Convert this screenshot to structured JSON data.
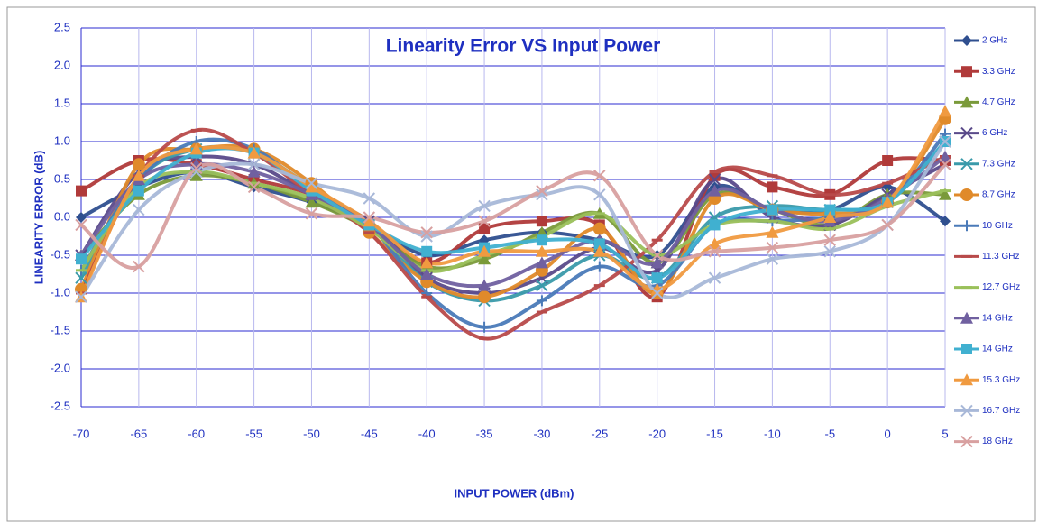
{
  "chart_data": {
    "type": "line",
    "title": "Linearity Error VS Input Power",
    "x_label": "INPUT POWER (dBm)",
    "y_label": "LINEARITY ERROR (dB)",
    "x": [
      -70,
      -65,
      -60,
      -55,
      -50,
      -45,
      -40,
      -35,
      -30,
      -25,
      -20,
      -15,
      -10,
      -5,
      0,
      5
    ],
    "xlim": [
      -70,
      5
    ],
    "xticks": [
      -70,
      -65,
      -60,
      -55,
      -50,
      -45,
      -40,
      -35,
      -30,
      -25,
      -20,
      -15,
      -10,
      -5,
      0,
      5
    ],
    "ylim": [
      -2.5,
      2.5
    ],
    "yticks": [
      -2.5,
      {
        "value": -2,
        "label": "-2.0"
      },
      -1.5,
      {
        "value": -1,
        "label": "-1.0"
      },
      -0.5,
      {
        "value": 0,
        "label": "0.0"
      },
      0.5,
      {
        "value": 1,
        "label": "1.0"
      },
      1.5,
      {
        "value": 2,
        "label": "2.0"
      },
      2.5
    ],
    "grid": true,
    "legend": "right",
    "series": [
      {
        "name": "2 GHz",
        "color": "#2f4f8f",
        "marker": "diamond",
        "values": [
          0,
          0.4,
          0.6,
          0.4,
          0.2,
          -0.1,
          -0.5,
          -0.3,
          -0.2,
          -0.3,
          -0.5,
          0.4,
          0.1,
          0.1,
          0.4,
          -0.05
        ]
      },
      {
        "name": "3.3 GHz",
        "color": "#b03a3a",
        "marker": "square",
        "values": [
          0.35,
          0.75,
          0.7,
          0.5,
          0.3,
          -0.1,
          -0.6,
          -0.15,
          -0.05,
          -0.1,
          -1.05,
          0.55,
          0.4,
          0.3,
          0.75,
          0.75
        ]
      },
      {
        "name": "4.7 GHz",
        "color": "#7a9a3a",
        "marker": "triangle",
        "values": [
          -0.5,
          0.3,
          0.55,
          0.45,
          0.2,
          -0.15,
          -0.65,
          -0.55,
          -0.2,
          0.05,
          -0.6,
          0.3,
          0.1,
          -0.1,
          0.3,
          0.3
        ]
      },
      {
        "name": "6 GHz",
        "color": "#5a4a8a",
        "marker": "cross",
        "values": [
          -0.5,
          0.6,
          0.8,
          0.7,
          0.3,
          -0.05,
          -0.8,
          -1.0,
          -0.8,
          -0.4,
          -0.7,
          0.5,
          0,
          -0.1,
          0.3,
          0.7
        ]
      },
      {
        "name": "7.3 GHz",
        "color": "#3a9aaa",
        "marker": "cross",
        "values": [
          -0.8,
          0.5,
          0.9,
          0.85,
          0.4,
          -0.1,
          -0.85,
          -1.1,
          -0.9,
          -0.5,
          -0.8,
          0,
          0.15,
          0.1,
          0.2,
          1.0
        ]
      },
      {
        "name": "8.7 GHz",
        "color": "#e08a2a",
        "marker": "circle",
        "values": [
          -0.95,
          0.7,
          0.9,
          0.9,
          0.45,
          -0.2,
          -0.85,
          -1.05,
          -0.7,
          -0.15,
          -1.0,
          0.25,
          0.1,
          0.05,
          0.2,
          1.3
        ]
      },
      {
        "name": "10 GHz",
        "color": "#4a7ab8",
        "marker": "plus",
        "values": [
          -0.7,
          0.5,
          1.0,
          0.9,
          0.35,
          -0.1,
          -1.0,
          -1.45,
          -1.1,
          -0.65,
          -0.9,
          -0.1,
          -0.05,
          0,
          0.2,
          1.1
        ]
      },
      {
        "name": "11.3 GHz",
        "color": "#b84a4a",
        "marker": "dash",
        "values": [
          -1.0,
          0.55,
          1.15,
          0.85,
          0.3,
          -0.2,
          -1.05,
          -1.6,
          -1.25,
          -0.9,
          -0.3,
          0.6,
          0.55,
          0.3,
          0.45,
          0.8
        ]
      },
      {
        "name": "12.7 GHz",
        "color": "#9ac05a",
        "marker": "dash",
        "values": [
          -0.7,
          0.4,
          0.6,
          0.45,
          0.25,
          -0.15,
          -0.7,
          -0.5,
          -0.25,
          0.05,
          -0.5,
          -0.1,
          -0.05,
          -0.15,
          0.15,
          0.35
        ]
      },
      {
        "name": "14 GHz",
        "color": "#7060a0",
        "marker": "triangle",
        "values": [
          -0.5,
          0.5,
          0.7,
          0.6,
          0.3,
          -0.1,
          -0.75,
          -0.9,
          -0.6,
          -0.3,
          -0.6,
          0.35,
          0.1,
          -0.05,
          0.25,
          0.8
        ]
      },
      {
        "name": "14 GHz",
        "color": "#40b0d0",
        "marker": "square",
        "values": [
          -0.55,
          0.35,
          0.85,
          0.85,
          0.35,
          -0.1,
          -0.45,
          -0.4,
          -0.3,
          -0.35,
          -0.8,
          -0.1,
          0.1,
          0.1,
          0.2,
          1.0
        ]
      },
      {
        "name": "15.3 GHz",
        "color": "#f09a40",
        "marker": "triangle",
        "values": [
          -1.05,
          0.55,
          0.9,
          0.85,
          0.4,
          -0.05,
          -0.6,
          -0.45,
          -0.45,
          -0.45,
          -0.95,
          -0.35,
          -0.2,
          0,
          0.2,
          1.4
        ]
      },
      {
        "name": "16.7 GHz",
        "color": "#a8b8d8",
        "marker": "cross",
        "values": [
          -1.05,
          0.1,
          0.6,
          0.7,
          0.45,
          0.25,
          -0.25,
          0.15,
          0.3,
          0.3,
          -1.0,
          -0.8,
          -0.55,
          -0.45,
          -0.1,
          1.0
        ]
      },
      {
        "name": "18 GHz",
        "color": "#d8a0a0",
        "marker": "cross",
        "values": [
          -0.1,
          -0.65,
          0.65,
          0.4,
          0.05,
          0,
          -0.2,
          -0.05,
          0.35,
          0.55,
          -0.5,
          -0.45,
          -0.4,
          -0.3,
          -0.1,
          0.7
        ]
      }
    ]
  }
}
